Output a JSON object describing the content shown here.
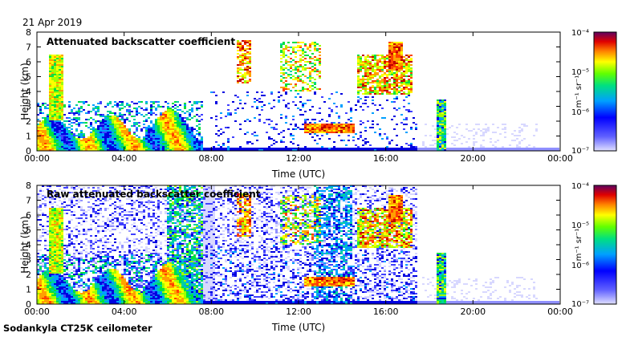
{
  "date": "21 Apr 2019",
  "footer": "Sodankyla CT25K ceilometer",
  "colorbar": {
    "unit_html": "m⁻¹ sr⁻¹",
    "ticks": [
      "10⁻⁷",
      "10⁻⁶",
      "10⁻⁵",
      "10⁻⁴"
    ]
  },
  "chart_data": [
    {
      "type": "heatmap",
      "title": "Attenuated backscatter coefficient",
      "xlabel": "Time (UTC)",
      "ylabel": "Height (km)",
      "xlim": [
        "00:00",
        "24:00"
      ],
      "x_ticks": [
        "00:00",
        "04:00",
        "08:00",
        "12:00",
        "16:00",
        "20:00",
        "00:00"
      ],
      "ylim": [
        0,
        8
      ],
      "y_ticks": [
        0,
        1,
        2,
        3,
        4,
        5,
        6,
        7,
        8
      ],
      "color_scale": "log",
      "clim": [
        1e-07,
        0.0001
      ],
      "colormap": [
        "#d8d8ff",
        "#4040ff",
        "#00b0ff",
        "#00e060",
        "#ffff00",
        "#ff9000",
        "#e00000",
        "#600060"
      ]
    },
    {
      "type": "heatmap",
      "title": "Raw attenuated backscatter coefficient",
      "xlabel": "Time (UTC)",
      "ylabel": "Height (km)",
      "xlim": [
        "00:00",
        "24:00"
      ],
      "x_ticks": [
        "00:00",
        "04:00",
        "08:00",
        "12:00",
        "16:00",
        "20:00",
        "00:00"
      ],
      "ylim": [
        0,
        8
      ],
      "y_ticks": [
        0,
        1,
        2,
        3,
        4,
        5,
        6,
        7,
        8
      ],
      "color_scale": "log",
      "clim": [
        1e-07,
        0.0001
      ],
      "colormap": [
        "#d8d8ff",
        "#4040ff",
        "#00b0ff",
        "#00e060",
        "#ffff00",
        "#ff9000",
        "#e00000",
        "#600060"
      ]
    }
  ]
}
